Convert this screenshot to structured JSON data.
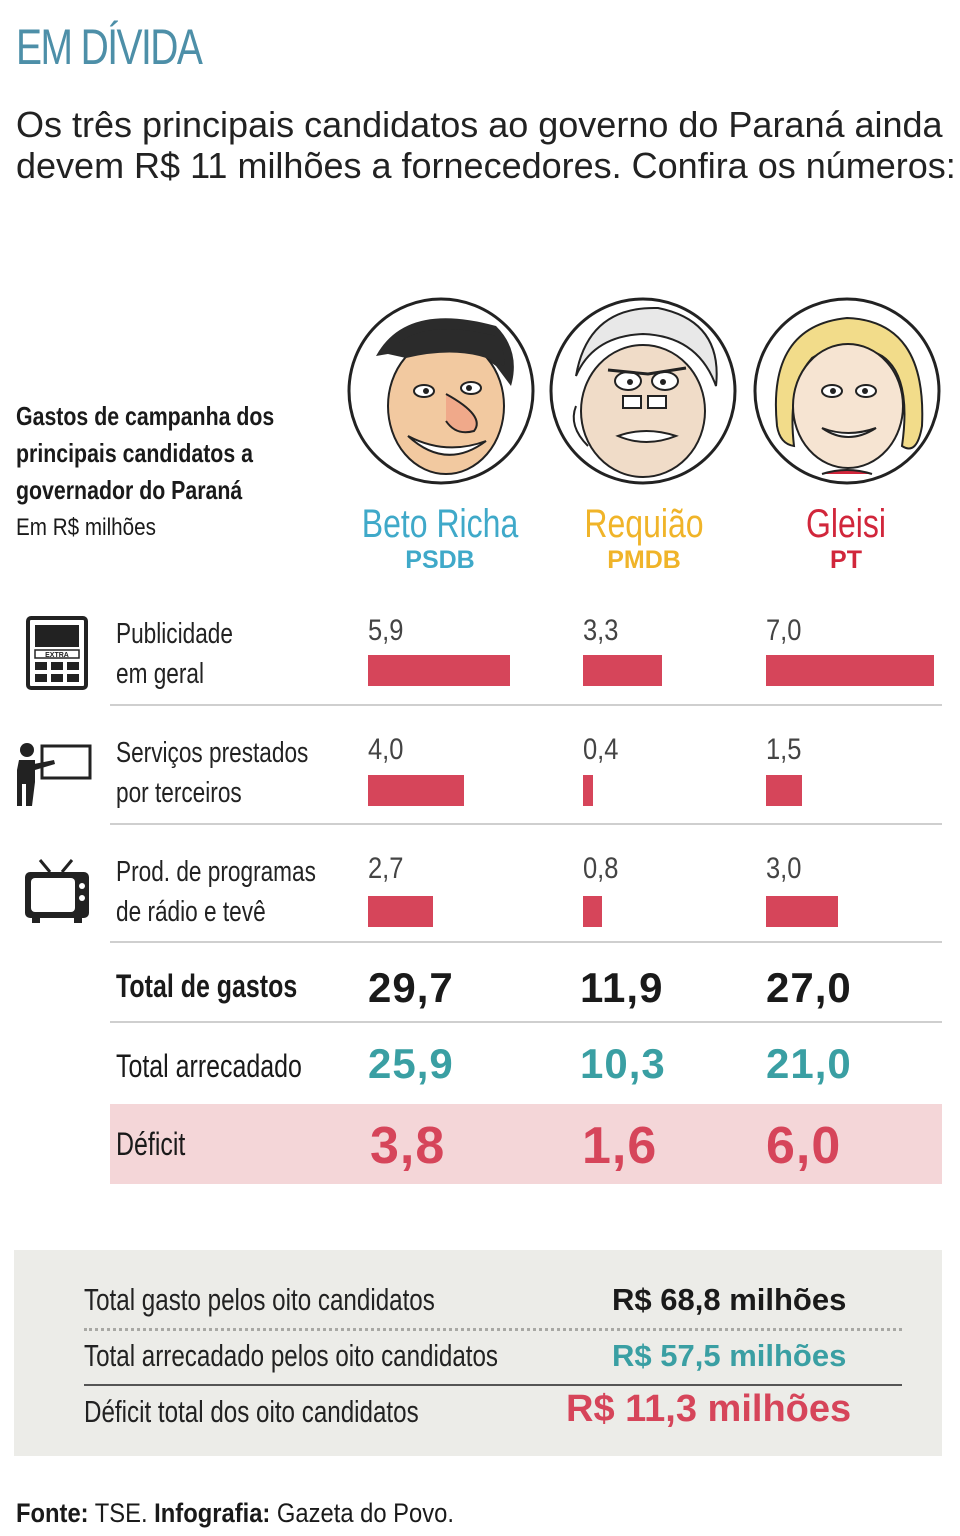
{
  "header": {
    "title": "EM DÍVIDA",
    "intro": "Os três principais candidatos ao governo do Paraná ainda devem R$ 11 milhões a fornecedores. Confira os números:"
  },
  "chart_data": {
    "type": "bar",
    "title": "Gastos de campanha dos principais candidatos a governador do Paraná",
    "subtitle": "Em R$ milhões",
    "candidates": [
      {
        "name": "Beto Richa",
        "party": "PSDB",
        "color": "#3fa9c9"
      },
      {
        "name": "Requião",
        "party": "PMDB",
        "color": "#f0b429"
      },
      {
        "name": "Gleisi",
        "party": "PT",
        "color": "#d1263b"
      }
    ],
    "categories": [
      {
        "label_line1": "Publicidade",
        "label_line2": "em geral",
        "icon": "newspaper-icon",
        "values": [
          5.9,
          3.3,
          7.0
        ],
        "labels": [
          "5,9",
          "3,3",
          "7,0"
        ]
      },
      {
        "label_line1": "Serviços prestados",
        "label_line2": "por terceiros",
        "icon": "presenter-icon",
        "values": [
          4.0,
          0.4,
          1.5
        ],
        "labels": [
          "4,0",
          "0,4",
          "1,5"
        ]
      },
      {
        "label_line1": "Prod. de programas",
        "label_line2": "de rádio e tevê",
        "icon": "tv-icon",
        "values": [
          2.7,
          0.8,
          3.0
        ],
        "labels": [
          "2,7",
          "0,8",
          "3,0"
        ]
      }
    ],
    "bar_color": "#d6455a",
    "max_value": 7.0,
    "totals": {
      "spent": {
        "label": "Total de gastos",
        "values": [
          "29,7",
          "11,9",
          "27,0"
        ],
        "color": "#1a1a1a"
      },
      "raised": {
        "label": "Total arrecadado",
        "values": [
          "25,9",
          "10,3",
          "21,0"
        ],
        "color": "#3a9fa3"
      },
      "deficit": {
        "label": "Déficit",
        "values": [
          "3,8",
          "1,6",
          "6,0"
        ],
        "color": "#d6455a"
      }
    }
  },
  "summary": {
    "rows": [
      {
        "label": "Total gasto pelos oito candidatos",
        "value": "R$ 68,8 milhões",
        "color": "#1a1a1a"
      },
      {
        "label": "Total arrecadado pelos oito candidatos",
        "value": "R$ 57,5 milhões",
        "color": "#3a9fa3"
      },
      {
        "label": "Déficit total dos oito candidatos",
        "value": "R$ 11,3 milhões",
        "color": "#d6455a"
      }
    ]
  },
  "footer": {
    "source_label": "Fonte:",
    "source": " TSE. ",
    "credit_label": "Infografia:",
    "credit": " Gazeta do Povo."
  }
}
